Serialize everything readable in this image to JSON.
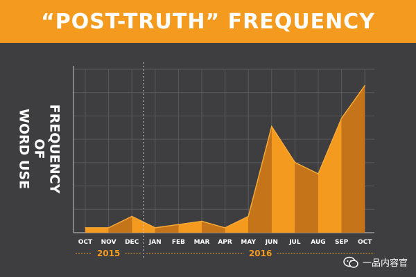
{
  "banner": {
    "title": "“POST-TRUTH” FREQUENCY"
  },
  "colors": {
    "background": "#3e3e40",
    "accent": "#f39a1f",
    "accent_dark": "#c6741a",
    "accent_light": "#f7a935",
    "grid": "#5a5a5c"
  },
  "watermark": {
    "text": "一品内容官",
    "icon": "wechat-icon"
  },
  "chart_data": {
    "type": "area",
    "title": "“POST-TRUTH” FREQUENCY",
    "ylabel": "FREQUENCY OF\nWORD USE",
    "xlabel": "",
    "categories": [
      "OCT",
      "NOV",
      "DEC",
      "JAN",
      "FEB",
      "MAR",
      "APR",
      "MAY",
      "JUN",
      "JUL",
      "AUG",
      "SEP",
      "OCT"
    ],
    "values": [
      0.3,
      0.3,
      1.0,
      0.3,
      0.5,
      0.7,
      0.3,
      1.0,
      6.5,
      4.3,
      3.6,
      7.0,
      9.0
    ],
    "ylim": [
      0,
      10
    ],
    "y_tick_labels": "none",
    "grid": "horizontal",
    "year_groups": [
      {
        "label": "2015",
        "start_index": 0,
        "end_index": 2
      },
      {
        "label": "2016",
        "start_index": 3,
        "end_index": 12
      }
    ]
  }
}
